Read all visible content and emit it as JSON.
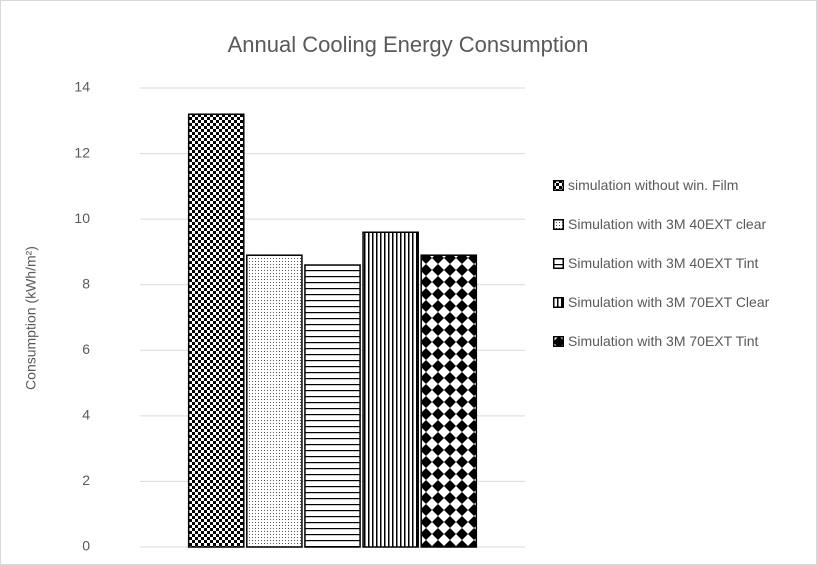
{
  "chart_data": {
    "type": "bar",
    "title": "Annual Cooling Energy Consumption",
    "y_label": "Consumption (kWh/m²)",
    "categories": [
      null
    ],
    "series": [
      {
        "name": "simulation without win. Film",
        "color": "#000000",
        "pattern": "checker",
        "values": [
          13.2
        ]
      },
      {
        "name": "Simulation with 3M 40EXT clear",
        "color": "#000000",
        "pattern": "dots",
        "values": [
          8.9
        ]
      },
      {
        "name": "Simulation with 3M 40EXT Tint",
        "color": "#000000",
        "pattern": "hlines",
        "values": [
          8.6
        ]
      },
      {
        "name": "Simulation with 3M 70EXT Clear",
        "color": "#000000",
        "pattern": "vlines",
        "values": [
          9.6
        ]
      },
      {
        "name": "Simulation with 3M 70EXT Tint",
        "color": "#000000",
        "pattern": "diamonds",
        "values": [
          8.9
        ]
      }
    ],
    "ylim": [
      0,
      14
    ],
    "yticks": [
      0,
      2,
      4,
      6,
      8,
      10,
      12,
      14
    ],
    "grid": true,
    "legend": "right"
  }
}
